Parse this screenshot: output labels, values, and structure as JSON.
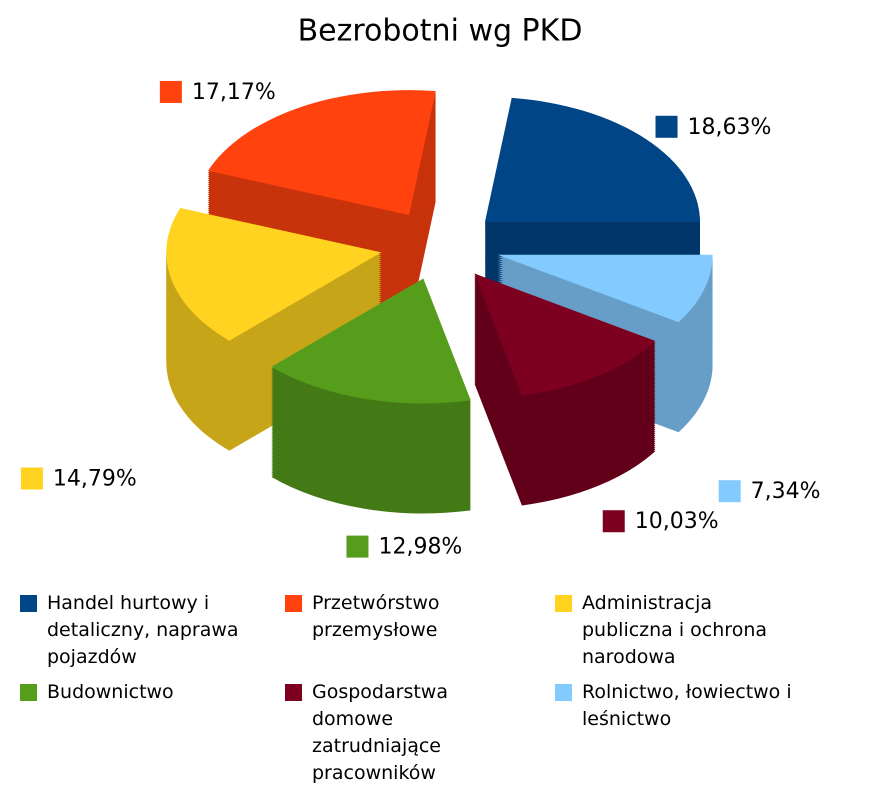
{
  "chart_data": {
    "type": "pie3d",
    "title": "Bezrobotni wg PKD",
    "series": [
      {
        "name": "Handel hurtowy i detaliczny, naprawa pojazdów",
        "color": "#004586",
        "value": 18.63,
        "value_label": "18,63%"
      },
      {
        "name": "Przetwórstwo przemysłowe",
        "color": "#ff420e",
        "value": 17.17,
        "value_label": "17,17%"
      },
      {
        "name": "Administracja publiczna i ochrona narodowa",
        "color": "#ffd320",
        "value": 14.79,
        "value_label": "14,79%"
      },
      {
        "name": "Budownictwo",
        "color": "#579d1c",
        "value": 12.98,
        "value_label": "12,98%"
      },
      {
        "name": "Gospodarstwa domowe zatrudniające pracowników",
        "color": "#7e0021",
        "value": 10.03,
        "value_label": "10,03%"
      },
      {
        "name": "Rolnictwo, łowiectwo i leśnictwo",
        "color": "#83caff",
        "value": 7.34,
        "value_label": "7,34%"
      }
    ]
  }
}
